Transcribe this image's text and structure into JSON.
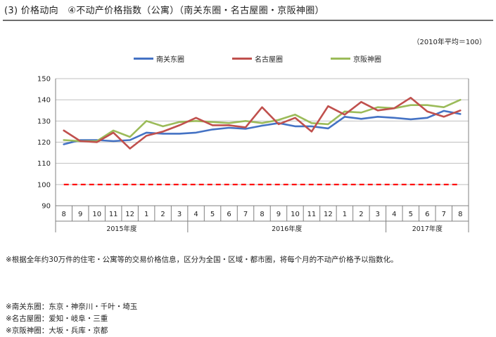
{
  "header": {
    "title": "(3) 价格动向　④不动产价格指数（公寓）（南关东圈・名古屋圈・京阪神圈）",
    "unit_note": "（2010年平均＝100）"
  },
  "notes": {
    "method": "※根据全年约30万件的住宅・公寓等的交易价格信息，区分为全国・区域・都市圈，将每个月的不动产价格予以指数化。",
    "region_1": "※南关东圈：东京・神奈川・千叶・埼玉",
    "region_2": "※名古屋圈：爱知・岐阜・三重",
    "region_3": "※京阪神圈：大坂・兵库・京都"
  },
  "chart_data": {
    "type": "line",
    "ylim": [
      90,
      150
    ],
    "yticks": [
      90,
      100,
      110,
      120,
      130,
      140,
      150
    ],
    "categories": [
      "8",
      "9",
      "10",
      "11",
      "12",
      "1",
      "2",
      "3",
      "4",
      "5",
      "6",
      "7",
      "8",
      "9",
      "10",
      "11",
      "12",
      "1",
      "2",
      "3",
      "4",
      "5",
      "6",
      "7",
      "8"
    ],
    "year_groups": [
      {
        "label": "2015年度",
        "count": 8
      },
      {
        "label": "2016年度",
        "count": 12
      },
      {
        "label": "2017年度",
        "count": 5
      }
    ],
    "series": [
      {
        "name": "南关东圈",
        "color": "#4472c4",
        "values": [
          119.0,
          121.0,
          121.0,
          120.5,
          121.0,
          124.5,
          124.0,
          124.0,
          124.5,
          126.0,
          126.8,
          126.3,
          127.8,
          129.0,
          127.5,
          127.5,
          126.5,
          132.0,
          131.0,
          132.0,
          131.5,
          130.8,
          131.5,
          134.8,
          133.3
        ]
      },
      {
        "name": "名古屋圈",
        "color": "#c0504d",
        "values": [
          125.5,
          120.5,
          120.0,
          124.5,
          117.0,
          123.0,
          125.0,
          128.0,
          131.5,
          128.0,
          128.0,
          127.0,
          136.5,
          128.5,
          131.5,
          125.0,
          137.0,
          133.0,
          139.0,
          135.0,
          136.0,
          141.0,
          134.5,
          132.0,
          135.0
        ]
      },
      {
        "name": "京阪神圈",
        "color": "#9bbb59",
        "values": [
          121.0,
          120.5,
          120.5,
          125.5,
          122.5,
          130.0,
          127.5,
          129.5,
          130.0,
          129.5,
          129.0,
          130.0,
          129.0,
          130.5,
          133.0,
          129.0,
          128.5,
          134.5,
          134.0,
          136.5,
          136.0,
          137.5,
          137.5,
          136.5,
          140.0
        ]
      }
    ],
    "reference_line": {
      "value": 100,
      "color": "#ff0000",
      "style": "dashed"
    }
  }
}
